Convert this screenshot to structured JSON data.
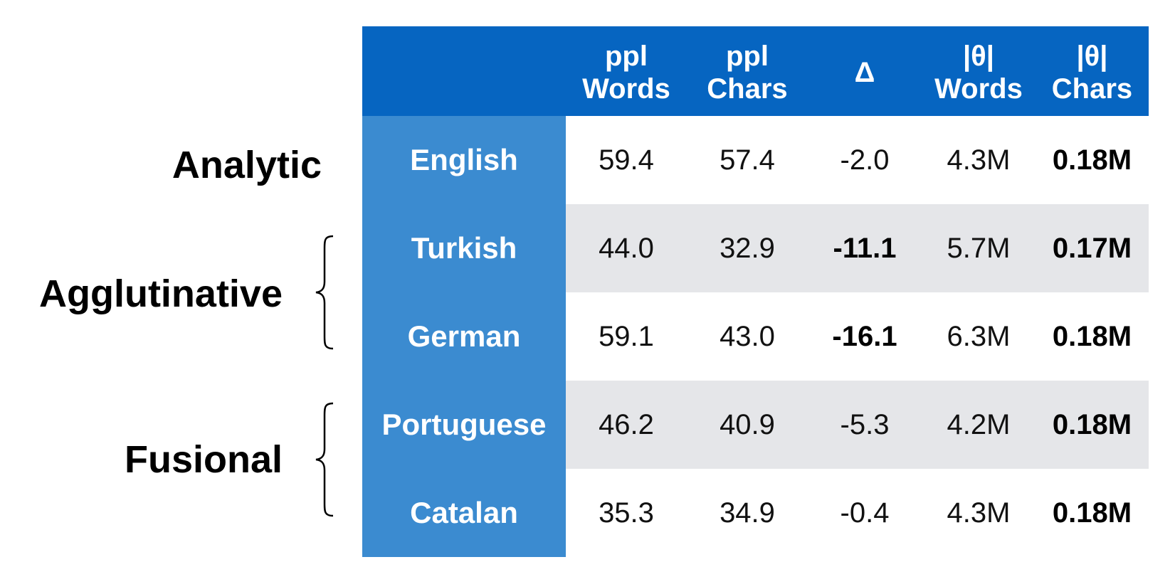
{
  "groups": [
    {
      "name": "Analytic"
    },
    {
      "name": "Agglutinative"
    },
    {
      "name": "Fusional"
    }
  ],
  "header": {
    "ppl_words": [
      "ppl",
      "Words"
    ],
    "ppl_chars": [
      "ppl",
      "Chars"
    ],
    "delta": "Δ",
    "theta_words": [
      "|θ|",
      "Words"
    ],
    "theta_chars": [
      "|θ|",
      "Chars"
    ]
  },
  "rows": [
    {
      "language": "English",
      "ppl_words": "59.4",
      "ppl_chars": "57.4",
      "delta": "-2.0",
      "theta_words": "4.3M",
      "theta_chars": "0.18M",
      "delta_bold": false
    },
    {
      "language": "Turkish",
      "ppl_words": "44.0",
      "ppl_chars": "32.9",
      "delta": "-11.1",
      "theta_words": "5.7M",
      "theta_chars": "0.17M",
      "delta_bold": true
    },
    {
      "language": "German",
      "ppl_words": "59.1",
      "ppl_chars": "43.0",
      "delta": "-16.1",
      "theta_words": "6.3M",
      "theta_chars": "0.18M",
      "delta_bold": true
    },
    {
      "language": "Portuguese",
      "ppl_words": "46.2",
      "ppl_chars": "40.9",
      "delta": "-5.3",
      "theta_words": "4.2M",
      "theta_chars": "0.18M",
      "delta_bold": false
    },
    {
      "language": "Catalan",
      "ppl_words": "35.3",
      "ppl_chars": "34.9",
      "delta": "-0.4",
      "theta_words": "4.3M",
      "theta_chars": "0.18M",
      "delta_bold": false
    }
  ],
  "colors": {
    "header_bg": "#0665c1",
    "language_column_bg": "#3b8bd0",
    "shaded_row_bg": "#e5e6e9"
  }
}
